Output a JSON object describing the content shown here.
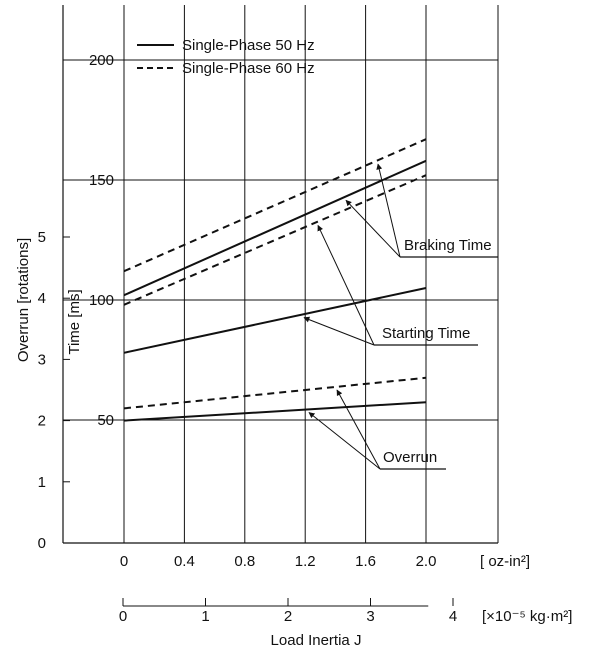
{
  "chart_data": {
    "type": "line",
    "x_axis_primary": {
      "unit_label": "[ oz-in²]",
      "ticks": [
        "0",
        "0.4",
        "0.8",
        "1.2",
        "1.6",
        "2.0"
      ],
      "range": [
        0,
        2.0
      ]
    },
    "x_axis_secondary": {
      "unit_label": "[×10⁻⁵ kg·m²]",
      "ticks": [
        "0",
        "1",
        "2",
        "3",
        "4"
      ],
      "range": [
        0,
        3.7
      ]
    },
    "xlabel": "Load Inertia J",
    "y_axis_time": {
      "label": "Time [ms]",
      "ticks": [
        "50",
        "100",
        "150",
        "200"
      ],
      "tick_values": [
        50,
        100,
        150,
        200
      ]
    },
    "y_axis_overrun": {
      "label": "Overrun [rotations]",
      "ticks": [
        "0",
        "1",
        "2",
        "3",
        "4",
        "5"
      ],
      "tick_values": [
        0,
        1,
        2,
        3,
        4,
        5
      ]
    },
    "legend": {
      "placement": "top-left",
      "entries": [
        {
          "label": "Single-Phase 50 Hz",
          "style": "solid"
        },
        {
          "label": "Single-Phase 60 Hz",
          "style": "dashed"
        }
      ]
    },
    "series": [
      {
        "group": "Braking Time",
        "axis": "time",
        "style": "solid",
        "x": [
          0,
          2.0
        ],
        "y": [
          102,
          158
        ]
      },
      {
        "group": "Braking Time",
        "axis": "time",
        "style": "dashed",
        "x": [
          0,
          2.0
        ],
        "y": [
          112,
          167
        ]
      },
      {
        "group": "Starting Time",
        "axis": "time",
        "style": "solid",
        "x": [
          0,
          2.0
        ],
        "y": [
          78,
          105
        ]
      },
      {
        "group": "Starting Time",
        "axis": "time",
        "style": "dashed",
        "x": [
          0,
          2.0
        ],
        "y": [
          98,
          152
        ]
      },
      {
        "group": "Overrun",
        "axis": "overrun",
        "style": "solid",
        "x": [
          0,
          2.0
        ],
        "y": [
          2.0,
          2.3
        ]
      },
      {
        "group": "Overrun",
        "axis": "overrun",
        "style": "dashed",
        "x": [
          0,
          2.0
        ],
        "y": [
          2.2,
          2.7
        ]
      }
    ],
    "annotations": [
      {
        "label": "Braking Time",
        "series_indices": [
          0,
          1
        ]
      },
      {
        "label": "Starting Time",
        "series_indices": [
          2,
          3
        ]
      },
      {
        "label": "Overrun",
        "series_indices": [
          4,
          5
        ]
      }
    ],
    "grid": true
  }
}
